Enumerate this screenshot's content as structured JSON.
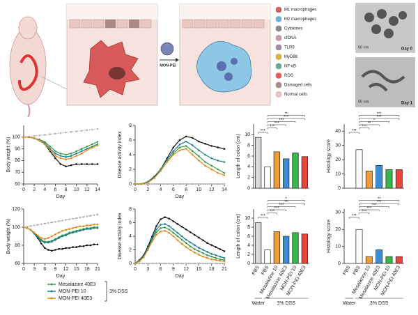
{
  "diagram": {
    "agent": "MON-PEI",
    "legend": [
      "M1 macrophages",
      "M2 macrophages",
      "Cytokines",
      "cfDNA",
      "TLR9",
      "MyD88",
      "NF-κB",
      "ROS",
      "Damaged cells",
      "Normal cells"
    ],
    "tem": [
      {
        "scale": "50 nm",
        "label": "Day 0"
      },
      {
        "scale": "50 nm",
        "label": "Day 1"
      }
    ]
  },
  "chart_data": [
    {
      "type": "line",
      "ylabel": "Body weight (%)",
      "xlabel": "Day",
      "x": [
        0,
        1,
        2,
        3,
        4,
        5,
        6,
        7,
        8,
        9,
        10,
        11,
        12,
        13,
        14
      ],
      "xlim": [
        0,
        14
      ],
      "xticks": [
        0,
        2,
        4,
        6,
        8,
        10,
        12,
        14
      ],
      "ylim": [
        60,
        110
      ],
      "yticks": [
        60,
        70,
        80,
        90,
        100
      ],
      "series": [
        {
          "color": "#b5b5b5",
          "linestyle": "dashed",
          "values": [
            100,
            100.5,
            101,
            101.5,
            102,
            102.5,
            103,
            103.5,
            104,
            104.5,
            105,
            105.5,
            106,
            106.5,
            107
          ]
        },
        {
          "color": "#111111",
          "values": [
            100,
            100,
            99,
            97,
            94,
            88,
            82,
            77,
            75,
            76,
            77,
            77,
            77,
            77,
            77
          ]
        },
        {
          "color": "#3a9a4a",
          "values": [
            100,
            100,
            99,
            98,
            96,
            92,
            88,
            86,
            85,
            86,
            88,
            90,
            92,
            94,
            96
          ]
        },
        {
          "color": "#1b7f8e",
          "values": [
            100,
            100,
            99,
            97,
            95,
            90,
            86,
            84,
            83,
            84,
            86,
            88,
            90,
            92,
            94
          ]
        },
        {
          "color": "#e08a1e",
          "values": [
            100,
            100,
            99,
            97,
            94,
            89,
            84,
            82,
            81,
            82,
            84,
            86,
            89,
            91,
            93
          ]
        }
      ]
    },
    {
      "type": "line",
      "ylabel": "Disease activity index",
      "xlabel": "Day",
      "x": [
        0,
        1,
        2,
        3,
        4,
        5,
        6,
        7,
        8,
        9,
        10,
        11,
        12,
        13,
        14
      ],
      "xlim": [
        0,
        14
      ],
      "xticks": [
        0,
        2,
        4,
        6,
        8,
        10,
        12,
        14
      ],
      "ylim": [
        0,
        8
      ],
      "yticks": [
        0,
        2,
        4,
        6,
        8
      ],
      "series": [
        {
          "color": "#b5b5b5",
          "linestyle": "dashed",
          "values": [
            0,
            0,
            0,
            0,
            0,
            0,
            0,
            0,
            0,
            0,
            0,
            0,
            0,
            0,
            0
          ]
        },
        {
          "color": "#111111",
          "values": [
            0,
            0,
            0.3,
            1,
            2,
            3.5,
            5,
            6,
            6.5,
            6.3,
            5.8,
            5.5,
            5.2,
            5,
            4.8
          ]
        },
        {
          "color": "#3a9a4a",
          "values": [
            0,
            0,
            0.2,
            0.8,
            1.8,
            3,
            4.2,
            5,
            5.2,
            4.5,
            3.8,
            3,
            2.5,
            2,
            1.5
          ]
        },
        {
          "color": "#1b7f8e",
          "values": [
            0,
            0,
            0.3,
            0.9,
            2,
            3.3,
            4.5,
            5.4,
            5.8,
            5.3,
            4.6,
            4,
            3.5,
            3.2,
            3
          ]
        },
        {
          "color": "#e08a1e",
          "values": [
            0,
            0,
            0.2,
            0.8,
            1.8,
            3,
            4,
            4.6,
            4.8,
            4,
            3.2,
            2.5,
            2,
            1.5,
            1.2
          ]
        }
      ]
    },
    {
      "type": "bar",
      "ylabel": "Length of colon (cm)",
      "categories": [
        null,
        null,
        null,
        null,
        null,
        null
      ],
      "values": [
        9.5,
        4,
        6.8,
        5.5,
        6.6,
        5.9
      ],
      "colors": [
        "#d9d9d9",
        "#ffffff",
        "#f29a3a",
        "#3a8ed8",
        "#3ab54a",
        "#e8443a"
      ],
      "ylim": [
        0,
        12
      ],
      "yticks": [
        0,
        2,
        4,
        6,
        8,
        10
      ],
      "annotations": [
        "***",
        "***",
        "***",
        "***",
        "***",
        "**"
      ]
    },
    {
      "type": "bar",
      "ylabel": "Histology score",
      "categories": [
        null,
        null,
        null,
        null,
        null,
        null
      ],
      "values": [
        0,
        27,
        12,
        16,
        13,
        13
      ],
      "colors": [
        "#d9d9d9",
        "#ffffff",
        "#f29a3a",
        "#3a8ed8",
        "#3ab54a",
        "#e8443a"
      ],
      "ylim": [
        0,
        45
      ],
      "yticks": [
        0,
        10,
        20,
        30,
        40
      ],
      "annotations": [
        "***",
        "***",
        "**",
        "*",
        "***",
        "***"
      ]
    },
    {
      "type": "line",
      "ylabel": "Body weight (%)",
      "xlabel": "Day",
      "x": [
        0,
        1,
        2,
        3,
        4,
        5,
        6,
        7,
        8,
        9,
        10,
        11,
        12,
        13,
        14,
        15,
        16,
        17,
        18,
        19,
        20,
        21
      ],
      "xlim": [
        0,
        21
      ],
      "xticks": [
        0,
        3,
        6,
        9,
        12,
        15,
        18,
        21
      ],
      "ylim": [
        60,
        120
      ],
      "yticks": [
        60,
        80,
        100,
        120
      ],
      "series": [
        {
          "color": "#b5b5b5",
          "linestyle": "dashed",
          "values": [
            100,
            100.7,
            101.3,
            102,
            102.7,
            103.3,
            104,
            104.7,
            105.3,
            106,
            106.7,
            107.3,
            108,
            108.7,
            109.3,
            110,
            110.7,
            111.3,
            112,
            112.7,
            113.3,
            114
          ]
        },
        {
          "color": "#111111",
          "values": [
            100,
            99,
            97,
            93,
            88,
            82,
            77,
            75,
            74,
            75,
            76,
            76,
            77,
            77,
            78,
            78,
            79,
            79,
            80,
            80,
            81,
            81
          ]
        },
        {
          "name": "Mesalazine 40E3",
          "color": "#3a9a4a",
          "values": [
            100,
            99,
            97,
            94,
            90,
            86,
            84,
            84,
            85,
            87,
            89,
            91,
            92,
            94,
            95,
            96,
            97,
            98,
            99,
            99,
            100,
            100
          ]
        },
        {
          "name": "MON-PEI 10",
          "color": "#1b7f8e",
          "values": [
            100,
            99,
            97,
            93,
            89,
            85,
            83,
            83,
            84,
            86,
            88,
            90,
            91,
            93,
            94,
            95,
            96,
            97,
            98,
            98,
            99,
            99
          ]
        },
        {
          "name": "MON-PEI 40E3",
          "color": "#e08a1e",
          "values": [
            100,
            99,
            97,
            94,
            91,
            88,
            87,
            88,
            90,
            92,
            94,
            96,
            97,
            98,
            99,
            100,
            101,
            101,
            102,
            102,
            103,
            103
          ]
        }
      ],
      "legend_group": "3% DSS"
    },
    {
      "type": "line",
      "ylabel": "Disease activity index",
      "xlabel": "Day",
      "x": [
        0,
        1,
        2,
        3,
        4,
        5,
        6,
        7,
        8,
        9,
        10,
        11,
        12,
        13,
        14,
        15,
        16,
        17,
        18,
        19,
        20,
        21
      ],
      "xlim": [
        0,
        21
      ],
      "xticks": [
        0,
        3,
        6,
        9,
        12,
        15,
        18,
        21
      ],
      "ylim": [
        0,
        8
      ],
      "yticks": [
        0,
        2,
        4,
        6,
        8
      ],
      "series": [
        {
          "color": "#b5b5b5",
          "linestyle": "dashed",
          "values": [
            0,
            0,
            0,
            0,
            0,
            0,
            0,
            0,
            0,
            0,
            0,
            0,
            0,
            0,
            0,
            0,
            0,
            0,
            0,
            0,
            0,
            0
          ]
        },
        {
          "color": "#111111",
          "values": [
            0,
            0.5,
            1.2,
            2.5,
            4,
            5.5,
            6.5,
            6.8,
            6.6,
            6.2,
            5.8,
            5.4,
            5,
            4.6,
            4.2,
            3.8,
            3.4,
            3,
            2.7,
            2.4,
            2.1,
            1.8
          ]
        },
        {
          "color": "#3a9a4a",
          "values": [
            0,
            0.4,
            1,
            2.2,
            3.5,
            4.6,
            5.2,
            5.3,
            5,
            4.5,
            4,
            3.5,
            3,
            2.5,
            2.1,
            1.8,
            1.5,
            1.2,
            1,
            0.8,
            0.6,
            0.5
          ]
        },
        {
          "color": "#1b7f8e",
          "values": [
            0,
            0.4,
            1.1,
            2.3,
            3.7,
            5,
            5.7,
            5.8,
            5.5,
            5,
            4.5,
            4,
            3.5,
            3.1,
            2.7,
            2.3,
            2,
            1.7,
            1.4,
            1.2,
            1,
            0.8
          ]
        },
        {
          "color": "#e08a1e",
          "values": [
            0,
            0.3,
            0.9,
            2,
            3.2,
            4.2,
            4.7,
            4.8,
            4.5,
            4,
            3.4,
            2.9,
            2.4,
            2,
            1.6,
            1.3,
            1,
            0.8,
            0.6,
            0.5,
            0.4,
            0.3
          ]
        }
      ]
    },
    {
      "type": "bar",
      "ylabel": "Length of colon (cm)",
      "categories": [
        "PBS",
        "PBS",
        "Mesalazine 10",
        "Mesalazine 40E3",
        "MON-PEI 10",
        "MON-PEI 40E3"
      ],
      "values": [
        9,
        3,
        7,
        6,
        6.8,
        6.5
      ],
      "colors": [
        "#d9d9d9",
        "#ffffff",
        "#f29a3a",
        "#3a8ed8",
        "#3ab54a",
        "#e8443a"
      ],
      "ylim": [
        0,
        12
      ],
      "yticks": [
        0,
        2,
        4,
        6,
        8,
        10
      ],
      "annotations": [
        "***",
        "***",
        "***",
        "***",
        "**",
        "*"
      ],
      "group_labels": [
        "Water",
        "3% DSS"
      ]
    },
    {
      "type": "bar",
      "ylabel": "Histology score",
      "categories": [
        "PBS",
        "PBS",
        "Mesalazine 10",
        "Mesalazine 40E3",
        "MON-PEI 10",
        "MON-PEI 40E3"
      ],
      "values": [
        0,
        20,
        4,
        8,
        4,
        4
      ],
      "colors": [
        "#d9d9d9",
        "#ffffff",
        "#f29a3a",
        "#3a8ed8",
        "#3ab54a",
        "#e8443a"
      ],
      "ylim": [
        0,
        32
      ],
      "yticks": [
        0,
        10,
        20,
        30
      ],
      "annotations": [
        "***",
        "***",
        "***",
        "***",
        "***",
        "**"
      ],
      "group_labels": [
        "Water",
        "3% DSS"
      ]
    }
  ]
}
